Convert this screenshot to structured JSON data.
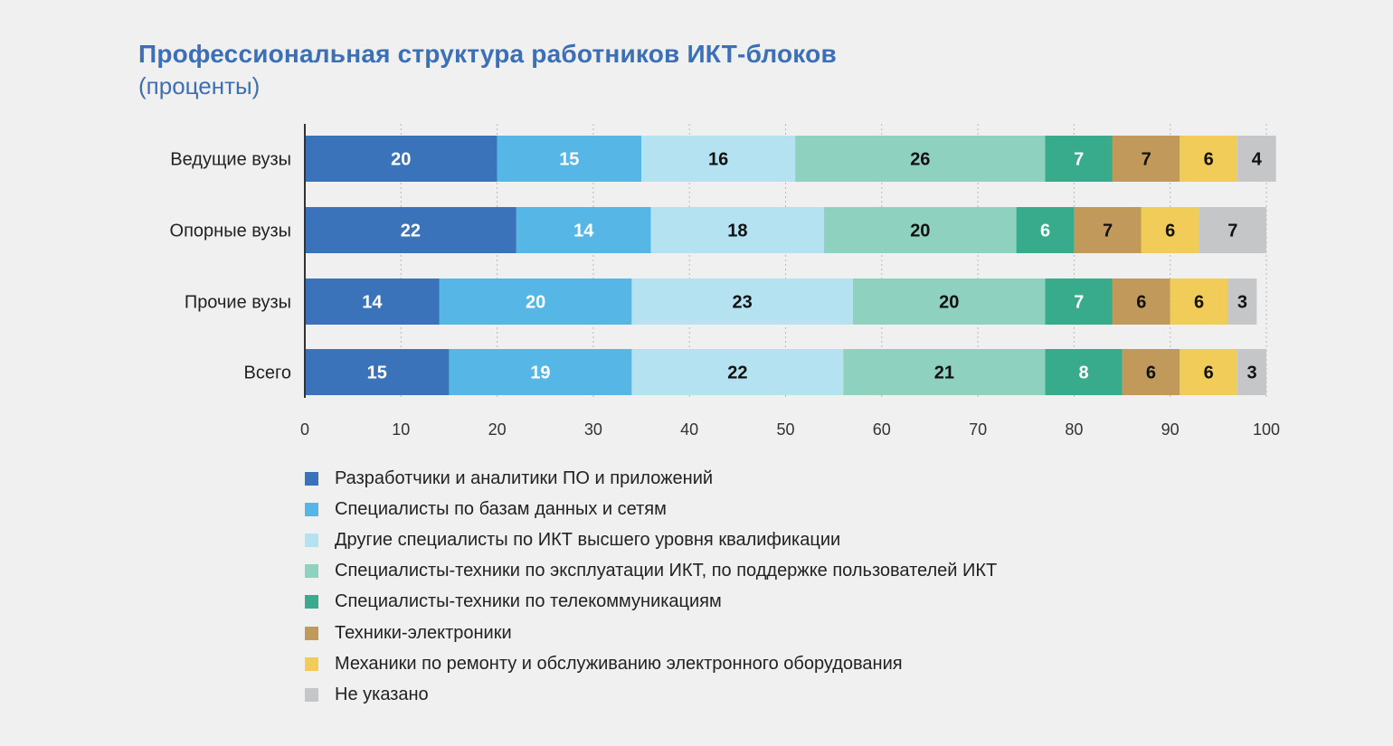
{
  "chart_title": "Профессиональная структура работников ИКТ-блоков",
  "chart_subtitle": "(проценты)",
  "chart_data": {
    "type": "bar",
    "orientation": "horizontal",
    "stacked": true,
    "categories": [
      "Ведущие вузы",
      "Опорные вузы",
      "Прочие вузы",
      "Всего"
    ],
    "series": [
      {
        "name": "Разработчики и аналитики ПО и приложений",
        "color": "#3b73bb",
        "label_color": "#ffffff",
        "values": [
          20,
          22,
          14,
          15
        ]
      },
      {
        "name": "Специалисты по базам данных и сетям",
        "color": "#56b7e7",
        "label_color": "#ffffff",
        "values": [
          15,
          14,
          20,
          19
        ]
      },
      {
        "name": "Другие специалисты по ИКТ высшего уровня квалификации",
        "color": "#b5e2f1",
        "label_color": "#111111",
        "values": [
          16,
          18,
          23,
          22
        ]
      },
      {
        "name": "Специалисты-техники по эксплуатации ИКТ, по поддержке пользователей ИКТ",
        "color": "#8fd1bf",
        "label_color": "#111111",
        "values": [
          26,
          20,
          20,
          21
        ]
      },
      {
        "name": "Специалисты-техники по телекоммуникациям",
        "color": "#37ab8c",
        "label_color": "#ffffff",
        "values": [
          7,
          6,
          7,
          8
        ]
      },
      {
        "name": "Техники-электроники",
        "color": "#c19a5b",
        "label_color": "#111111",
        "values": [
          7,
          7,
          6,
          6
        ]
      },
      {
        "name": "Механики по ремонту и обслуживанию электронного оборудования",
        "color": "#f2cc58",
        "label_color": "#111111",
        "values": [
          6,
          6,
          6,
          6
        ]
      },
      {
        "name": "Не указано",
        "color": "#c4c6c8",
        "label_color": "#111111",
        "values": [
          4,
          7,
          3,
          3
        ]
      }
    ],
    "x_ticks": [
      0,
      10,
      20,
      30,
      40,
      50,
      60,
      70,
      80,
      90,
      100
    ],
    "xlim": [
      0,
      100
    ],
    "grid": "vertical dashed",
    "legend_position": "bottom"
  }
}
